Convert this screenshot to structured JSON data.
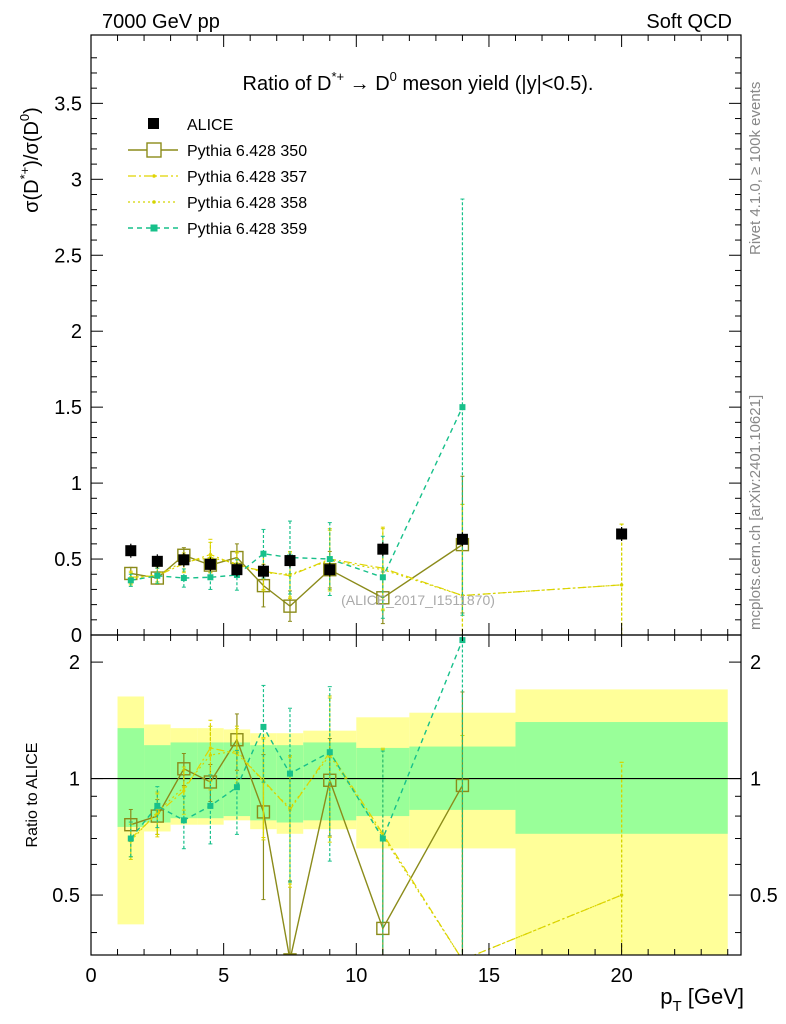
{
  "header": {
    "left": "7000 GeV pp",
    "right": "Soft QCD",
    "title_main": "Ratio of D",
    "title_sup": "*+",
    "title_arrow": " → D",
    "title_sup2": "0",
    "title_tail": " meson yield (|y|<0.5).",
    "side_right_top": "Rivet 4.1.0, ≥ 100k events",
    "side_right_bottom": "mcplots.cern.ch [arXiv:2401.10621]",
    "watermark": "(ALICE_2017_I1511870)"
  },
  "axes": {
    "ylabel_main": "σ(D*+)/σ(D⁰)",
    "ylabel_ratio": "Ratio to ALICE",
    "xlabel": "p_T [GeV]",
    "x_label_p": "p",
    "x_label_sub": "T",
    "x_label_unit": " [GeV]",
    "y_main_l1": "σ(D",
    "y_main_sup1": "*+",
    "y_main_l2": ")/σ(D",
    "y_main_sup2": "0",
    "y_main_l3": ")",
    "main_yticks": [
      "0",
      "0.5",
      "1",
      "1.5",
      "2",
      "2.5",
      "3",
      "3.5"
    ],
    "ratio_yticks": [
      "0.5",
      "1",
      "2"
    ],
    "xticks": [
      "0",
      "5",
      "10",
      "15",
      "20"
    ]
  },
  "legend": [
    {
      "label": "ALICE",
      "color": "#000000"
    },
    {
      "label": "Pythia 6.428 350",
      "color": "#8b8b1a"
    },
    {
      "label": "Pythia 6.428 357",
      "color": "#e0d400"
    },
    {
      "label": "Pythia 6.428 358",
      "color": "#d4d400"
    },
    {
      "label": "Pythia 6.428 359",
      "color": "#17c08a"
    }
  ],
  "chart_data": {
    "type": "line",
    "title": "Ratio of D*+ → D0 meson yield (|y|<0.5).",
    "xlabel": "p_T [GeV]",
    "ylabel": "σ(D*+)/σ(D0)",
    "xlim": [
      0,
      24.5
    ],
    "ylim": [
      0,
      3.95
    ],
    "ratio_ylim": [
      0.35,
      2.35
    ],
    "ratio_scale": "log",
    "alice": {
      "x": [
        1.5,
        2.5,
        3.5,
        4.5,
        5.5,
        6.5,
        7.5,
        9,
        11,
        14,
        20
      ],
      "y": [
        0.555,
        0.485,
        0.495,
        0.465,
        0.43,
        0.42,
        0.49,
        0.43,
        0.565,
        0.63,
        0.665
      ],
      "bins": [
        [
          1,
          2
        ],
        [
          2,
          3
        ],
        [
          3,
          4
        ],
        [
          4,
          5
        ],
        [
          5,
          6
        ],
        [
          6,
          7
        ],
        [
          7,
          8
        ],
        [
          8,
          10
        ],
        [
          10,
          12
        ],
        [
          12,
          16
        ],
        [
          16,
          24
        ]
      ],
      "ratio_band_inner": [
        [
          0.75,
          1.35
        ],
        [
          0.77,
          1.22
        ],
        [
          0.79,
          1.24
        ],
        [
          0.79,
          1.24
        ],
        [
          0.8,
          1.24
        ],
        [
          0.78,
          1.22
        ],
        [
          0.77,
          1.22
        ],
        [
          0.78,
          1.24
        ],
        [
          0.8,
          1.2
        ],
        [
          0.83,
          1.21
        ],
        [
          0.72,
          1.4
        ]
      ],
      "ratio_band_outer": [
        [
          0.42,
          1.63
        ],
        [
          0.73,
          1.38
        ],
        [
          0.76,
          1.35
        ],
        [
          0.76,
          1.35
        ],
        [
          0.78,
          1.34
        ],
        [
          0.74,
          1.31
        ],
        [
          0.72,
          1.31
        ],
        [
          0.74,
          1.33
        ],
        [
          0.66,
          1.44
        ],
        [
          0.66,
          1.48
        ],
        [
          0.35,
          1.7
        ]
      ]
    },
    "series": [
      {
        "name": "Pythia 6.428 350",
        "x": [
          1.5,
          2.5,
          3.5,
          4.5,
          5.5,
          6.5,
          7.5,
          9,
          11,
          14
        ],
        "y": [
          0.405,
          0.375,
          0.525,
          0.46,
          0.51,
          0.325,
          0.19,
          0.43,
          0.245,
          0.595
        ],
        "err": [
          0.04,
          0.04,
          0.05,
          0.05,
          0.09,
          0.14,
          0.1,
          0.12,
          0.17,
          0.45
        ],
        "ratio": [
          0.76,
          0.8,
          1.06,
          0.98,
          1.26,
          0.82,
          0.34,
          0.99,
          0.41,
          0.96
        ]
      },
      {
        "name": "Pythia 6.428 357",
        "x": [
          1.5,
          2.5,
          3.5,
          4.5,
          5.5,
          6.5,
          7.5,
          9,
          11,
          14,
          20
        ],
        "y": [
          0.38,
          0.39,
          0.47,
          0.53,
          0.46,
          0.42,
          0.39,
          0.5,
          0.44,
          0.26,
          0.33
        ],
        "err": [
          0.04,
          0.05,
          0.06,
          0.1,
          0.08,
          0.12,
          0.15,
          0.2,
          0.27,
          0.6,
          0.4
        ],
        "ratio": [
          0.7,
          0.81,
          0.93,
          1.2,
          1.16,
          0.99,
          0.83,
          1.17,
          0.72,
          0.34,
          0.5
        ]
      },
      {
        "name": "Pythia 6.428 358",
        "x": [
          1.5,
          2.5,
          3.5,
          4.5,
          5.5,
          6.5,
          7.5,
          9,
          11,
          14,
          20
        ],
        "y": [
          0.37,
          0.4,
          0.48,
          0.51,
          0.47,
          0.41,
          0.4,
          0.49,
          0.43,
          0.26,
          0.33
        ],
        "err": [
          0.04,
          0.05,
          0.06,
          0.1,
          0.08,
          0.12,
          0.15,
          0.2,
          0.27,
          0.6,
          0.4
        ],
        "ratio": [
          0.69,
          0.82,
          0.95,
          1.15,
          1.18,
          0.98,
          0.84,
          1.15,
          0.71,
          0.34,
          0.5
        ]
      },
      {
        "name": "Pythia 6.428 359",
        "x": [
          1.5,
          2.5,
          3.5,
          4.5,
          5.5,
          6.5,
          7.5,
          9,
          11,
          14
        ],
        "y": [
          0.36,
          0.39,
          0.375,
          0.38,
          0.395,
          0.535,
          0.51,
          0.5,
          0.38,
          1.5
        ],
        "err": [
          0.04,
          0.05,
          0.06,
          0.08,
          0.1,
          0.16,
          0.24,
          0.24,
          0.27,
          1.37
        ],
        "ratio": [
          0.7,
          0.85,
          0.78,
          0.85,
          0.95,
          1.36,
          1.03,
          1.17,
          0.7,
          2.28
        ]
      }
    ]
  }
}
